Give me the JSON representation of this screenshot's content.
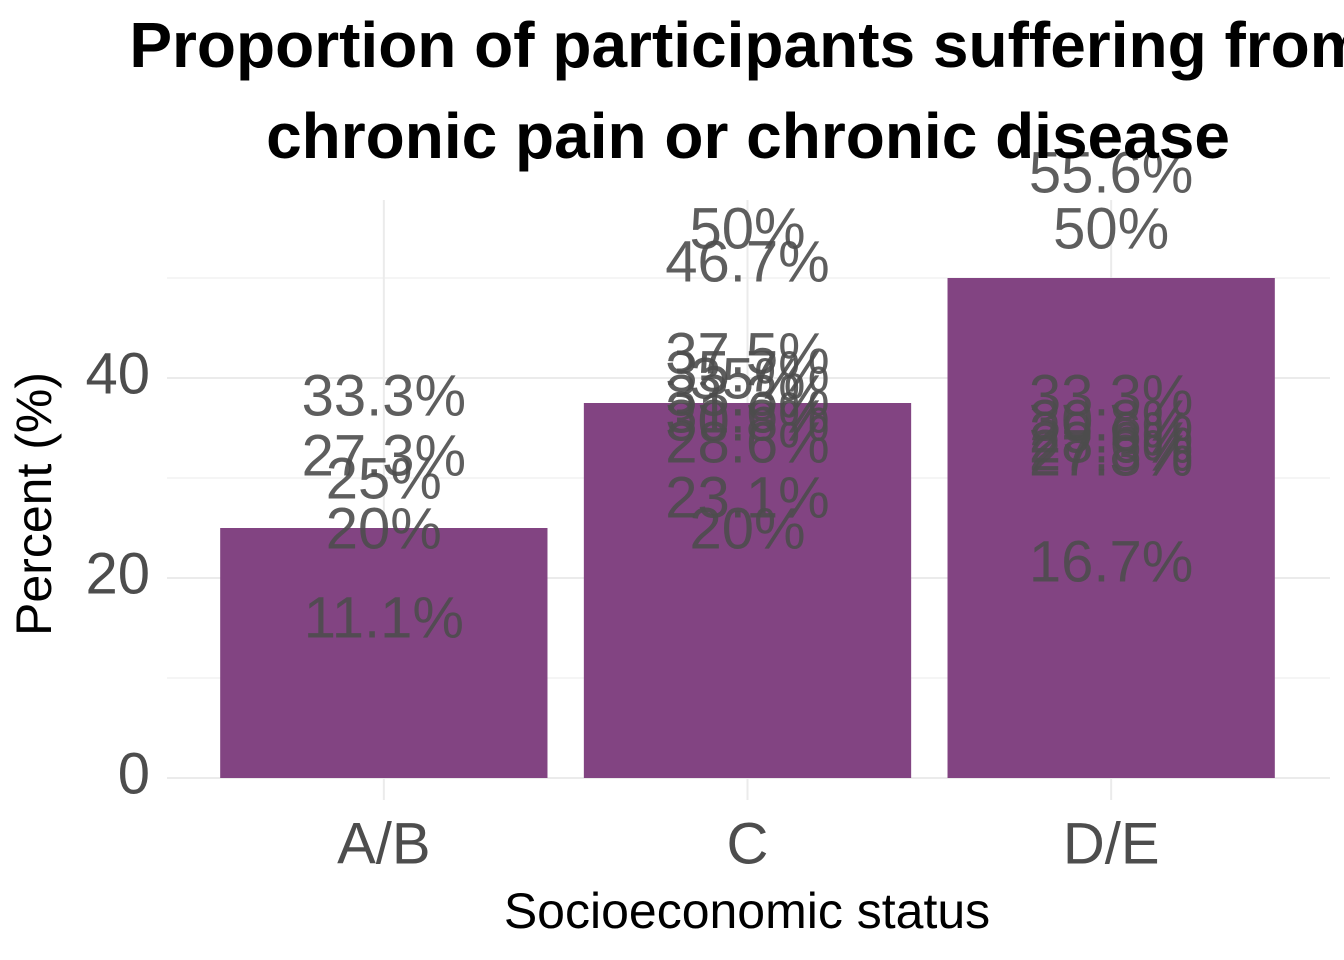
{
  "chart_data": {
    "type": "bar",
    "title": [
      "Proportion of participants suffering from",
      "chronic pain or chronic disease"
    ],
    "x_label": "Socioeconomic status",
    "y_label": "Percent (%)",
    "categories": [
      "A/B",
      "C",
      "D/E"
    ],
    "values": [
      25,
      37.5,
      50
    ],
    "color": "#824482",
    "ylim": [
      0,
      57.8
    ],
    "yticks": [
      0,
      20,
      40
    ],
    "minor_yticks": [
      10,
      30,
      50
    ],
    "grid": true,
    "point_labels": [
      {
        "values": [
          33.3,
          27.3,
          25,
          20,
          11.1
        ],
        "value_labels": [
          "33.3%",
          "27.3%",
          "25%",
          "20%",
          "11.1%"
        ]
      },
      {
        "values": [
          50,
          46.7,
          37.5,
          35.7,
          35,
          33.3,
          31.6,
          30.8,
          28.6,
          23.1,
          20
        ],
        "value_labels": [
          "50%",
          "46.7%",
          "37.5%",
          "35.7%",
          "35%",
          "33.3%",
          "31.6%",
          "30.8%",
          "28.6%",
          "23.1%",
          "20%"
        ]
      },
      {
        "values": [
          55.6,
          50,
          33.3,
          30.8,
          29.6,
          28.6,
          27.8,
          27.3,
          16.7
        ],
        "value_labels": [
          "55.6%",
          "50%",
          "33.3%",
          "30.8%",
          "29.6%",
          "28.6%",
          "27.8%",
          "27.3%",
          "16.7%"
        ]
      }
    ]
  }
}
